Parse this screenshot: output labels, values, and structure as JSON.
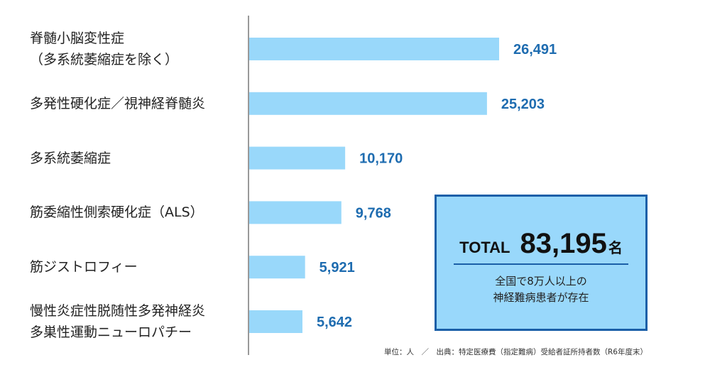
{
  "chart_data": {
    "type": "bar",
    "orientation": "horizontal",
    "categories": [
      [
        "脊髄小脳変性症",
        "（多系統萎縮症を除く）"
      ],
      [
        "多発性硬化症／視神経脊髄炎"
      ],
      [
        "多系統萎縮症"
      ],
      [
        "筋委縮性側索硬化症（ALS）"
      ],
      [
        "筋ジストロフィー"
      ],
      [
        "慢性炎症性脱随性多発神経炎",
        "多巣性運動ニューロパチー"
      ]
    ],
    "values": [
      26491,
      25203,
      10170,
      9768,
      5921,
      5642
    ],
    "value_labels": [
      "26,491",
      "25,203",
      "10,170",
      "9,768",
      "5,921",
      "5,642"
    ],
    "grid": false,
    "colors": {
      "bar": "#99d8fa",
      "value_text": "#1e6cb0",
      "box_fill": "#99d8fb",
      "box_border": "#1a5fa8"
    }
  },
  "total": {
    "word": "TOTAL",
    "number": "83,195",
    "unit": "名",
    "note_lines": [
      "全国で8万人以上の",
      "神経難病患者が存在"
    ]
  },
  "footnote": "単位：人　／　出典：特定医療費（指定難病）受給者証所持者数（R6年度末）"
}
